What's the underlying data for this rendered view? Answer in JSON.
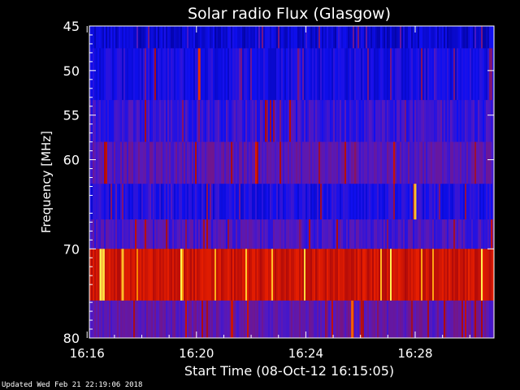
{
  "chart_data": {
    "type": "heatmap",
    "title": "Solar radio Flux (Glasgow)",
    "xlabel": "Start Time (08-Oct-12 16:15:05)",
    "ylabel": "Frequency [MHz]",
    "x_range_minutes": [
      16.083,
      30.883
    ],
    "y_range_mhz": [
      45,
      80
    ],
    "x_ticks": [
      {
        "label": "16:16",
        "minute": 16
      },
      {
        "label": "16:20",
        "minute": 20
      },
      {
        "label": "16:24",
        "minute": 24
      },
      {
        "label": "16:28",
        "minute": 28
      }
    ],
    "y_ticks": [
      {
        "label": "45",
        "mhz": 45
      },
      {
        "label": "50",
        "mhz": 50
      },
      {
        "label": "55",
        "mhz": 55
      },
      {
        "label": "60",
        "mhz": 60
      },
      {
        "label": "70",
        "mhz": 70
      },
      {
        "label": "80",
        "mhz": 80
      }
    ],
    "frequency_bands": [
      {
        "from_mhz": 45,
        "to_mhz": 47.5,
        "level": 0.12
      },
      {
        "from_mhz": 47.5,
        "to_mhz": 53.3,
        "level": 0.18
      },
      {
        "from_mhz": 53.3,
        "to_mhz": 58,
        "level": 0.26
      },
      {
        "from_mhz": 58,
        "to_mhz": 62.7,
        "level": 0.34
      },
      {
        "from_mhz": 62.7,
        "to_mhz": 66.7,
        "level": 0.2
      },
      {
        "from_mhz": 66.7,
        "to_mhz": 70,
        "level": 0.3
      },
      {
        "from_mhz": 70,
        "to_mhz": 75.8,
        "level": 0.7
      },
      {
        "from_mhz": 75.8,
        "to_mhz": 80,
        "level": 0.36
      }
    ],
    "bursts": [
      {
        "minute": 20.1,
        "from_mhz": 47.5,
        "to_mhz": 53.3,
        "level": 0.8
      },
      {
        "minute": 28.0,
        "from_mhz": 62.7,
        "to_mhz": 66.7,
        "level": 0.95
      },
      {
        "minute": 16.5,
        "from_mhz": 70,
        "to_mhz": 75.8,
        "level": 1.0
      },
      {
        "minute": 16.6,
        "from_mhz": 70,
        "to_mhz": 75.8,
        "level": 0.98
      },
      {
        "minute": 17.3,
        "from_mhz": 70,
        "to_mhz": 75.8,
        "level": 0.95
      },
      {
        "minute": 21.3,
        "from_mhz": 75.8,
        "to_mhz": 80,
        "level": 0.7
      },
      {
        "minute": 25.7,
        "from_mhz": 75.8,
        "to_mhz": 80,
        "level": 0.85
      }
    ]
  },
  "footer": {
    "updated": "Updated Wed Feb 21 22:19:06 2018"
  }
}
